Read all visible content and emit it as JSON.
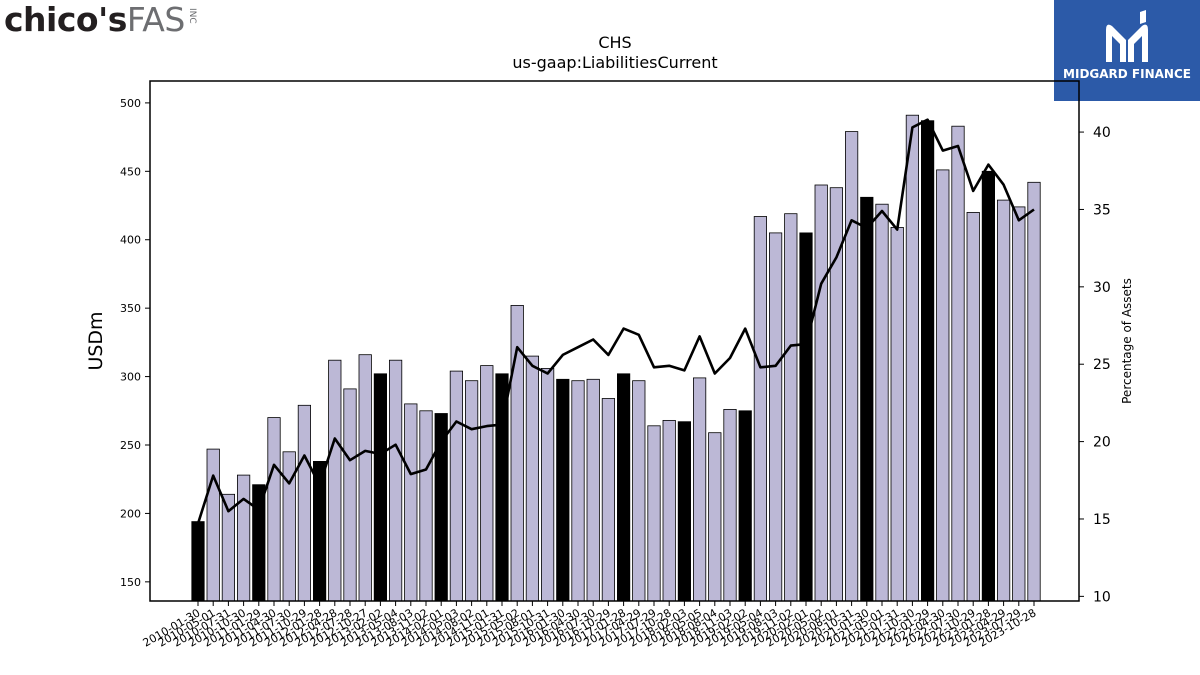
{
  "brand": {
    "left_main": "chico's",
    "left_sub": "FAS",
    "left_inc": "INC",
    "right_name": "MIDGARD FINANCE"
  },
  "colors": {
    "bar_fill": "#bcb8d6",
    "bar_highlight": "#000000",
    "line": "#000000",
    "logo_bg": "#2c5aa8"
  },
  "chart_data": {
    "type": "bar",
    "title": "CHS",
    "subtitle": "us-gaap:LiabilitiesCurrent",
    "ylabel": "USDm",
    "y2label": "Percentage of Assets",
    "ylim": [
      136,
      516
    ],
    "y2lim": [
      9.7,
      43.3
    ],
    "yticks": [
      150,
      200,
      250,
      300,
      350,
      400,
      450,
      500
    ],
    "y2ticks": [
      10,
      15,
      20,
      25,
      30,
      35,
      40
    ],
    "xticklabels": [
      "2010-01-30",
      "2010-05-01",
      "2010-07-31",
      "2010-10-30",
      "2011-01-29",
      "2011-04-30",
      "2011-07-30",
      "2011-10-29",
      "2012-01-28",
      "2012-04-28",
      "2012-07-28",
      "2012-10-27",
      "2013-02-02",
      "2013-05-04",
      "2013-08-03",
      "2013-11-02",
      "2014-02-01",
      "2014-05-03",
      "2014-08-02",
      "2014-11-01",
      "2015-01-31",
      "2015-05-02",
      "2015-08-01",
      "2015-10-31",
      "2016-01-30",
      "2016-04-30",
      "2016-07-30",
      "2016-10-29",
      "2017-01-28",
      "2017-04-29",
      "2017-07-29",
      "2017-10-28",
      "2018-02-03",
      "2018-05-05",
      "2018-08-04",
      "2018-11-03",
      "2019-02-02",
      "2019-05-04",
      "2019-08-03",
      "2019-11-02",
      "2020-02-01",
      "2020-05-02",
      "2020-08-01",
      "2020-10-31",
      "2021-01-30",
      "2021-05-01",
      "2021-07-31",
      "2021-10-30",
      "2022-01-29",
      "2022-04-30",
      "2022-07-30",
      "2022-10-29",
      "2023-01-28",
      "2023-04-29",
      "2023-07-29",
      "2023-10-28"
    ],
    "values": [
      194,
      247,
      214,
      228,
      221,
      270,
      245,
      279,
      238,
      312,
      291,
      316,
      302,
      312,
      280,
      275,
      273,
      304,
      297,
      308,
      302,
      352,
      315,
      306,
      298,
      297,
      298,
      284,
      302,
      297,
      264,
      268,
      267,
      299,
      259,
      276,
      275,
      417,
      405,
      419,
      405,
      440,
      438,
      479,
      431,
      426,
      409,
      491,
      487,
      451,
      483,
      420,
      450,
      429,
      424,
      442
    ],
    "highlight": [
      true,
      false,
      false,
      false,
      true,
      false,
      false,
      false,
      true,
      false,
      false,
      false,
      true,
      false,
      false,
      false,
      true,
      false,
      false,
      false,
      true,
      false,
      false,
      false,
      true,
      false,
      false,
      false,
      true,
      false,
      false,
      false,
      true,
      false,
      false,
      false,
      true,
      false,
      false,
      false,
      true,
      false,
      false,
      false,
      true,
      false,
      false,
      false,
      true,
      false,
      false,
      false,
      true,
      false,
      false,
      false
    ],
    "pct_of_assets": [
      14.7,
      17.8,
      15.5,
      16.3,
      15.6,
      18.5,
      17.3,
      19.1,
      17.2,
      20.2,
      18.8,
      19.4,
      19.2,
      19.8,
      17.9,
      18.2,
      20.0,
      21.3,
      20.8,
      21.0,
      21.1,
      26.1,
      24.9,
      24.4,
      25.6,
      26.1,
      26.6,
      25.6,
      27.3,
      26.9,
      24.8,
      24.9,
      24.6,
      26.8,
      24.4,
      25.4,
      27.3,
      24.8,
      24.9,
      26.2,
      26.3,
      30.2,
      31.9,
      34.3,
      33.8,
      34.9,
      33.7,
      40.3,
      40.8,
      38.8,
      39.1,
      36.2,
      37.9,
      36.6,
      34.3,
      35.0
    ],
    "grid": false
  }
}
